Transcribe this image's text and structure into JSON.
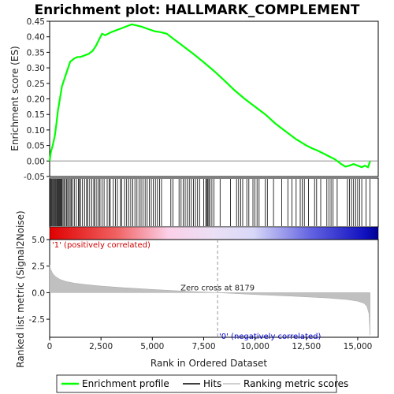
{
  "chart_data": {
    "type": "line",
    "title": "Enrichment plot: HALLMARK_COMPLEMENT",
    "xlabel": "Rank in Ordered Dataset",
    "ylabel_top": "Enrichment score (ES)",
    "ylabel_bottom": "Ranked list metric (Signal2Noise)",
    "xlim": [
      0,
      16000
    ],
    "x_ticks": [
      0,
      2500,
      5000,
      7500,
      10000,
      12500,
      15000
    ],
    "x_tick_labels": [
      "0",
      "2,500",
      "5,000",
      "7,500",
      "10,000",
      "12,500",
      "15,000"
    ],
    "es_ylim": [
      -0.05,
      0.45
    ],
    "es_ticks": [
      -0.05,
      0.0,
      0.05,
      0.1,
      0.15,
      0.2,
      0.25,
      0.3,
      0.35,
      0.4,
      0.45
    ],
    "es_tick_labels": [
      "-0.05",
      "0.00",
      "0.05",
      "0.10",
      "0.15",
      "0.20",
      "0.25",
      "0.30",
      "0.35",
      "0.40",
      "0.45"
    ],
    "metric_ylim": [
      -4.2,
      5.0
    ],
    "metric_ticks": [
      5.0,
      2.5,
      0.0,
      -2.5
    ],
    "metric_tick_labels": [
      "5.0",
      "2.5",
      "0.0",
      "-2.5"
    ],
    "series": [
      {
        "name": "Enrichment profile",
        "color": "#00ff00",
        "x": [
          0,
          60,
          150,
          250,
          330,
          400,
          500,
          600,
          700,
          800,
          900,
          1000,
          1100,
          1200,
          1350,
          1500,
          1700,
          1900,
          2100,
          2250,
          2400,
          2550,
          2700,
          2850,
          3000,
          3200,
          3400,
          3600,
          3800,
          4000,
          4200,
          4500,
          4800,
          5100,
          5400,
          5700,
          6000,
          6500,
          7000,
          7500,
          8000,
          8500,
          9000,
          9500,
          10000,
          10500,
          11000,
          11500,
          12000,
          12500,
          12800,
          13000,
          13300,
          13600,
          13900,
          14200,
          14400,
          14600,
          14800,
          15000,
          15200,
          15350,
          15500,
          15580,
          15600
        ],
        "values": [
          0.0,
          0.03,
          0.05,
          0.08,
          0.12,
          0.16,
          0.2,
          0.24,
          0.26,
          0.28,
          0.3,
          0.32,
          0.325,
          0.33,
          0.335,
          0.335,
          0.34,
          0.345,
          0.355,
          0.37,
          0.39,
          0.41,
          0.405,
          0.41,
          0.415,
          0.42,
          0.425,
          0.43,
          0.435,
          0.44,
          0.437,
          0.432,
          0.425,
          0.418,
          0.415,
          0.41,
          0.395,
          0.37,
          0.345,
          0.318,
          0.29,
          0.26,
          0.228,
          0.2,
          0.175,
          0.15,
          0.12,
          0.095,
          0.07,
          0.05,
          0.04,
          0.035,
          0.025,
          0.015,
          0.005,
          -0.01,
          -0.018,
          -0.015,
          -0.01,
          -0.015,
          -0.02,
          -0.015,
          -0.02,
          -0.005,
          0.0
        ]
      },
      {
        "name": "Hits",
        "color": "#000000"
      },
      {
        "name": "Ranking metric scores",
        "color": "#c0c0c0",
        "x": [
          0,
          50,
          150,
          300,
          500,
          800,
          1200,
          1700,
          2500,
          3500,
          5000,
          6500,
          8179,
          10000,
          12000,
          13500,
          14500,
          15000,
          15300,
          15450,
          15550,
          15600
        ],
        "values": [
          2.6,
          2.2,
          1.8,
          1.5,
          1.25,
          1.05,
          0.9,
          0.78,
          0.62,
          0.48,
          0.3,
          0.15,
          0.0,
          -0.18,
          -0.35,
          -0.5,
          -0.65,
          -0.8,
          -1.0,
          -1.3,
          -2.0,
          -4.0
        ]
      }
    ],
    "hits": [
      10,
      40,
      80,
      120,
      160,
      200,
      240,
      280,
      320,
      360,
      400,
      440,
      480,
      520,
      560,
      600,
      650,
      700,
      760,
      820,
      880,
      940,
      1000,
      1060,
      1120,
      1200,
      1300,
      1400,
      1450,
      1500,
      1600,
      1700,
      1800,
      1850,
      1950,
      2050,
      2150,
      2200,
      2300,
      2400,
      2450,
      2550,
      2650,
      2800,
      2900,
      2950,
      3100,
      3200,
      3300,
      3450,
      3500,
      3650,
      3750,
      3850,
      3950,
      4050,
      4150,
      4250,
      4350,
      4450,
      4550,
      4650,
      4750,
      4850,
      4950,
      5050,
      5150,
      5250,
      5350,
      5450,
      5900,
      6000,
      6300,
      6400,
      6500,
      6600,
      6700,
      6800,
      6900,
      7000,
      7100,
      7200,
      7300,
      7500,
      7600,
      7650,
      7700,
      7750,
      7800,
      7900,
      8000,
      8300,
      8800,
      9100,
      9200,
      9300,
      9400,
      9600,
      9700,
      9900,
      10000,
      10100,
      10200,
      10500,
      10600,
      10900,
      11300,
      11600,
      11800,
      12000,
      12200,
      12300,
      12400,
      12600,
      12900,
      13000,
      13200,
      13500,
      13600,
      13700,
      13800,
      14000,
      14500,
      14600,
      14700,
      14800,
      14900,
      15000,
      15100,
      15200,
      15400,
      15600
    ],
    "zero_cross_label": "Zero cross at 8179",
    "zero_cross_x": 8179,
    "pos_label": "'1' (positively correlated)",
    "neg_label": "'0' (negatively correlated)",
    "pos_color": "#cc0000",
    "neg_color": "#0000cc",
    "legend_position": "bottom"
  }
}
